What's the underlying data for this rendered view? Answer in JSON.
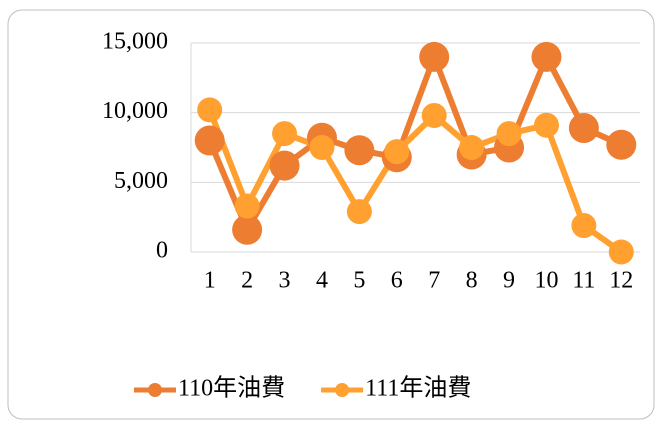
{
  "chart_data": {
    "type": "line",
    "categories": [
      "1",
      "2",
      "3",
      "4",
      "5",
      "6",
      "7",
      "8",
      "9",
      "10",
      "11",
      "12"
    ],
    "series": [
      {
        "name": "110年油費",
        "color": "#ed7d31",
        "values": [
          8000,
          1600,
          6200,
          8200,
          7300,
          6800,
          14000,
          7000,
          7500,
          14000,
          8900,
          7700
        ]
      },
      {
        "name": "111年油費",
        "color": "#ffa030",
        "values": [
          10200,
          3300,
          8500,
          7500,
          2900,
          7200,
          9800,
          7500,
          8500,
          9100,
          1900,
          0
        ]
      }
    ],
    "ylim": [
      0,
      15000
    ],
    "yticks": [
      0,
      {
        "value": 5000,
        "label": "5,000"
      },
      {
        "value": 10000,
        "label": "10,000"
      },
      {
        "value": 15000,
        "label": "15,000"
      }
    ],
    "grid": true,
    "legend": "bottom"
  }
}
